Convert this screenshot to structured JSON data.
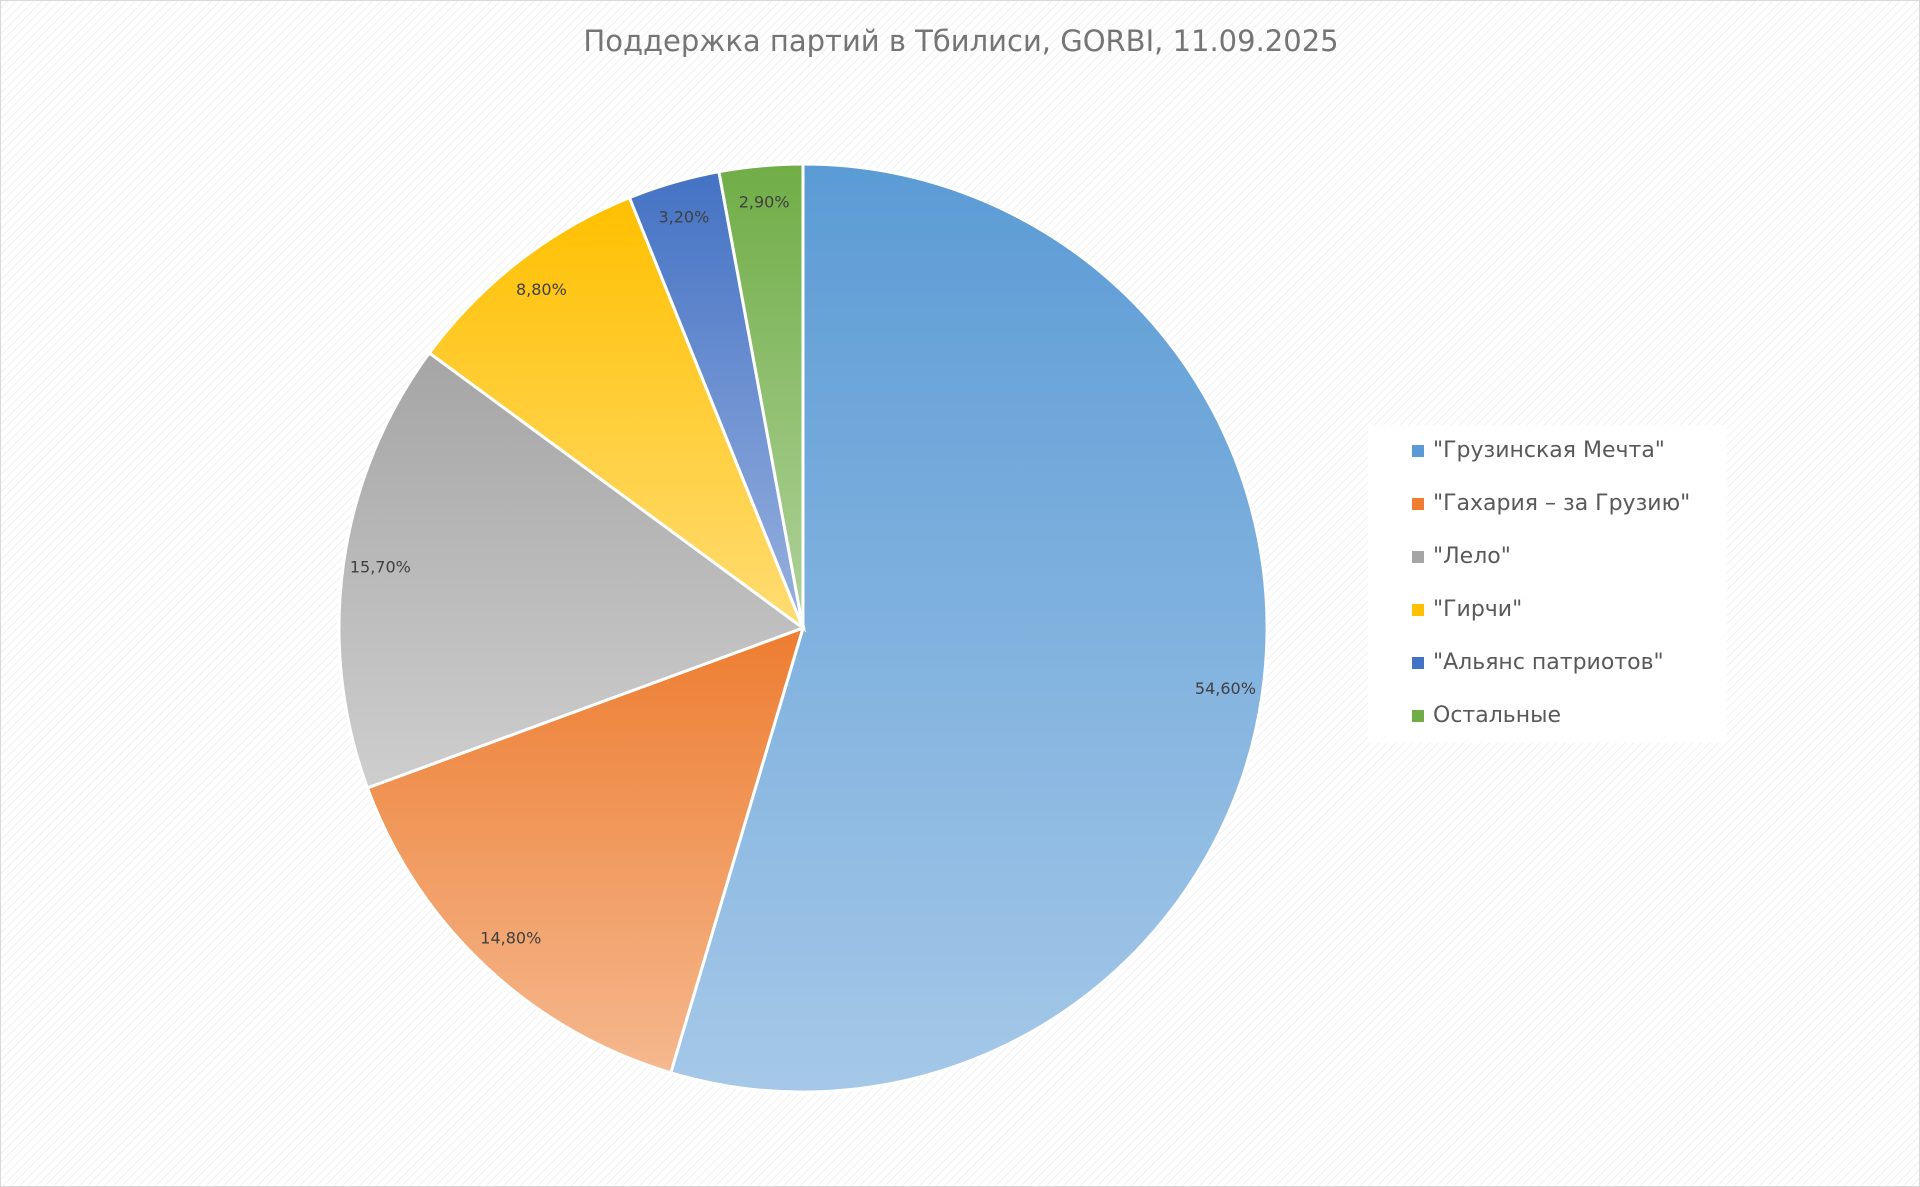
{
  "chart_data": {
    "type": "pie",
    "title": "Поддержка партий в Тбилиси, GORBI, 11.09.2025",
    "categories": [
      "\"Грузинская Мечта\"",
      "\"Гахария – за Грузию\"",
      "\"Лело\"",
      "\"Гирчи\"",
      "\"Альянс патриотов\"",
      "Остальные"
    ],
    "values": [
      54.6,
      14.8,
      15.7,
      8.8,
      3.2,
      2.9
    ],
    "value_labels": [
      "54,60%",
      "14,80%",
      "15,70%",
      "8,80%",
      "3,20%",
      "2,90%"
    ],
    "colors": [
      "#5b9bd5",
      "#ed7d31",
      "#a5a5a5",
      "#ffc000",
      "#4472c4",
      "#70ad47"
    ],
    "legend": "right"
  }
}
